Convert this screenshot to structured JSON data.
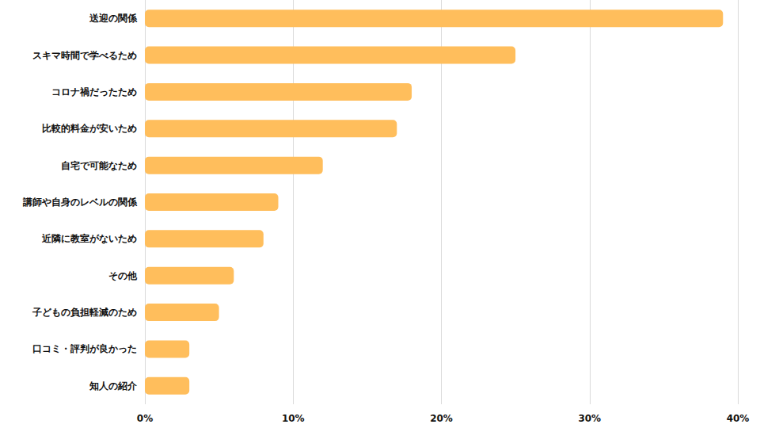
{
  "chart_data": {
    "type": "bar",
    "orientation": "horizontal",
    "categories": [
      "送迎の関係",
      "スキマ時間で学べるため",
      "コロナ禍だったため",
      "比較的料金が安いため",
      "自宅で可能なため",
      "講師や自身のレベルの関係",
      "近隣に教室がないため",
      "その他",
      "子どもの負担軽減のため",
      "口コミ・評判が良かった",
      "知人の紹介"
    ],
    "values": [
      39,
      25,
      18,
      17,
      12,
      9,
      8,
      6,
      5,
      3,
      3
    ],
    "color": "#ffbe5c",
    "xlim": [
      0,
      40
    ],
    "xticks": [
      {
        "value": 0,
        "label": "0%"
      },
      {
        "value": 10,
        "label": "10%"
      },
      {
        "value": 20,
        "label": "20%"
      },
      {
        "value": 30,
        "label": "30%"
      },
      {
        "value": 40,
        "label": "40%"
      }
    ],
    "grid": true
  }
}
